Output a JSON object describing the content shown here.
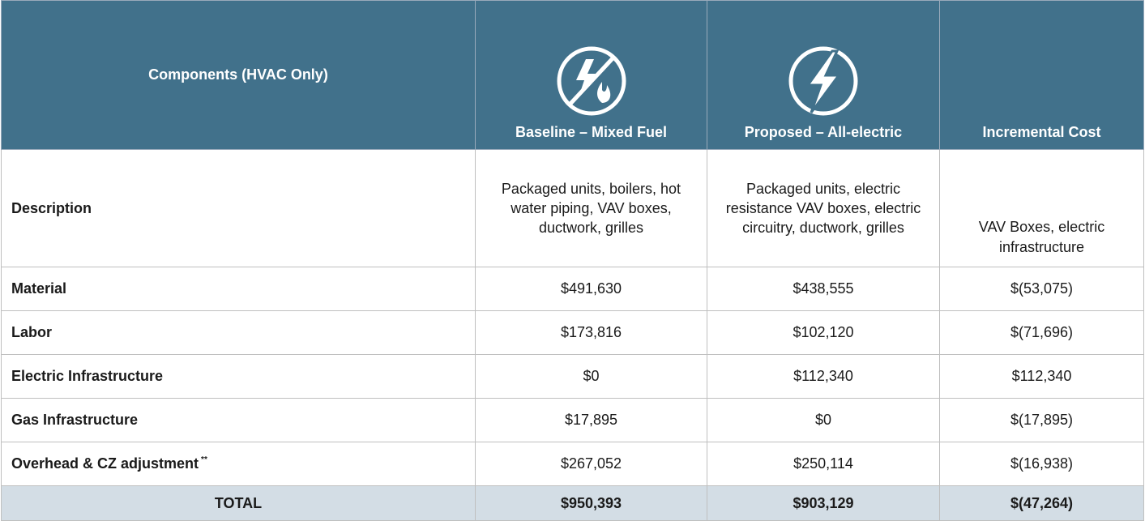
{
  "header": {
    "columns": [
      "Components (HVAC Only)",
      "Baseline – Mixed Fuel",
      "Proposed – All-electric",
      "Incremental Cost"
    ]
  },
  "table": {
    "rows": [
      {
        "label": "Description",
        "cells": [
          "Packaged units, boilers, hot water piping, VAV boxes, ductwork, grilles",
          "Packaged units, electric resistance VAV boxes, electric circuitry, ductwork, grilles",
          "VAV Boxes, electric infrastructure"
        ]
      },
      {
        "label": "Material",
        "cells": [
          "$491,630",
          "$438,555",
          "$(53,075)"
        ]
      },
      {
        "label": "Labor",
        "cells": [
          "$173,816",
          "$102,120",
          "$(71,696)"
        ]
      },
      {
        "label": "Electric Infrastructure",
        "cells": [
          "$0",
          "$112,340",
          "$112,340"
        ]
      },
      {
        "label": "Gas Infrastructure",
        "cells": [
          "$17,895",
          "$0",
          "$(17,895)"
        ]
      },
      {
        "label": "Overhead & CZ adjustment",
        "note": "**",
        "cells": [
          "$267,052",
          "$250,114",
          "$(16,938)"
        ]
      }
    ],
    "total": {
      "label": "TOTAL",
      "cells": [
        "$950,393",
        "$903,129",
        "$(47,264)"
      ]
    }
  }
}
